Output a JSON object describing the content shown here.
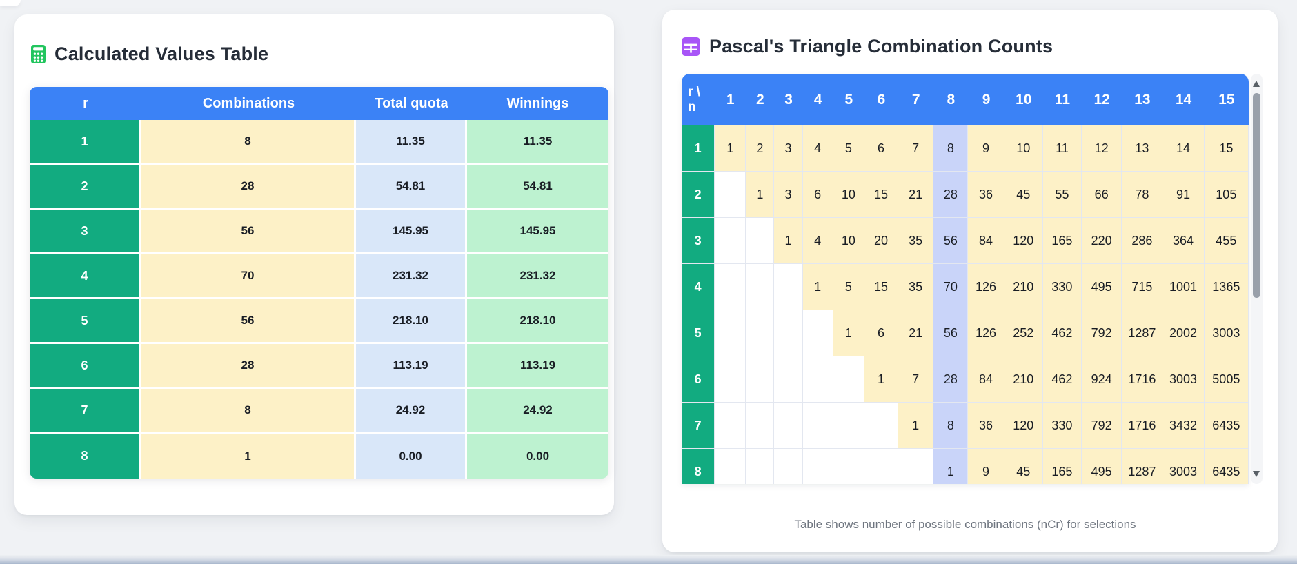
{
  "left_card": {
    "title": "Calculated Values Table",
    "icon": "calculator-icon",
    "table": {
      "columns": [
        "r",
        "Combinations",
        "Total quota",
        "Winnings"
      ],
      "rows": [
        [
          "1",
          "8",
          "11.35",
          "11.35"
        ],
        [
          "2",
          "28",
          "54.81",
          "54.81"
        ],
        [
          "3",
          "56",
          "145.95",
          "145.95"
        ],
        [
          "4",
          "70",
          "231.32",
          "231.32"
        ],
        [
          "5",
          "56",
          "218.10",
          "218.10"
        ],
        [
          "6",
          "28",
          "113.19",
          "113.19"
        ],
        [
          "7",
          "8",
          "24.92",
          "24.92"
        ],
        [
          "8",
          "1",
          "0.00",
          "0.00"
        ]
      ]
    }
  },
  "right_card": {
    "title": "Pascal's Triangle Combination Counts",
    "icon": "table-icon",
    "corner": {
      "top": "r \\",
      "bottom": "n"
    },
    "col_headers": [
      "1",
      "2",
      "3",
      "4",
      "5",
      "6",
      "7",
      "8",
      "9",
      "10",
      "11",
      "12",
      "13",
      "14",
      "15"
    ],
    "row_headers": [
      "1",
      "2",
      "3",
      "4",
      "5",
      "6",
      "7",
      "8"
    ],
    "highlighted_column": "8",
    "cells": [
      [
        "1",
        "2",
        "3",
        "4",
        "5",
        "6",
        "7",
        "8",
        "9",
        "10",
        "11",
        "12",
        "13",
        "14",
        "15"
      ],
      [
        "",
        "1",
        "3",
        "6",
        "10",
        "15",
        "21",
        "28",
        "36",
        "45",
        "55",
        "66",
        "78",
        "91",
        "105"
      ],
      [
        "",
        "",
        "1",
        "4",
        "10",
        "20",
        "35",
        "56",
        "84",
        "120",
        "165",
        "220",
        "286",
        "364",
        "455"
      ],
      [
        "",
        "",
        "",
        "1",
        "5",
        "15",
        "35",
        "70",
        "126",
        "210",
        "330",
        "495",
        "715",
        "1001",
        "1365"
      ],
      [
        "",
        "",
        "",
        "",
        "1",
        "6",
        "21",
        "56",
        "126",
        "252",
        "462",
        "792",
        "1287",
        "2002",
        "3003"
      ],
      [
        "",
        "",
        "",
        "",
        "",
        "1",
        "7",
        "28",
        "84",
        "210",
        "462",
        "924",
        "1716",
        "3003",
        "5005"
      ],
      [
        "",
        "",
        "",
        "",
        "",
        "",
        "1",
        "8",
        "36",
        "120",
        "330",
        "792",
        "1716",
        "3432",
        "6435"
      ],
      [
        "",
        "",
        "",
        "",
        "",
        "",
        "",
        "1",
        "9",
        "45",
        "165",
        "495",
        "1287",
        "3003",
        "6435"
      ]
    ],
    "caption": "Table shows number of possible combinations (nCr) for selections"
  },
  "colors": {
    "header_blue": "#3b82f6",
    "row_green": "#12ab80",
    "cell_yellow": "#fdf1c7",
    "cell_blue": "#d9e7f9",
    "cell_green": "#bdf2d0",
    "cell_indigo": "#c9d4f9",
    "calculator_icon_green": "#22c55e",
    "table_icon_purple": "#a855f7",
    "grid_line": "#e3e7f0",
    "title_ink": "#262d38",
    "caption_gray": "#6f7680",
    "page_bg": "#f0f2f5"
  }
}
